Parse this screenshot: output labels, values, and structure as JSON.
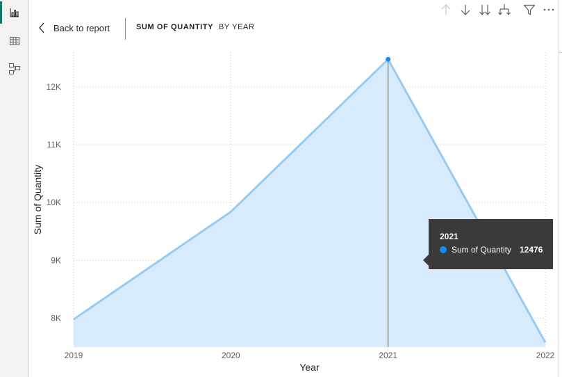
{
  "header": {
    "back_label": "Back to report",
    "breadcrumb": [
      "SUM OF QUANTITY",
      "BY YEAR"
    ]
  },
  "toolbar": {
    "icons": [
      "arrow-up-icon",
      "arrow-down-icon",
      "double-arrow-down-icon",
      "expand-hierarchy-icon",
      "filter-icon",
      "more-options-icon"
    ]
  },
  "sidebar": {
    "items": [
      "report-view-icon",
      "table-view-icon",
      "model-view-icon"
    ],
    "active_index": 0
  },
  "colors": {
    "series_line": "#95cbf5",
    "series_fill": "#d8ebfc",
    "marker": "#118dff",
    "tooltip_bg": "#3b3a39",
    "active_accent": "#117865"
  },
  "chart_data": {
    "type": "area",
    "xlabel": "Year",
    "ylabel": "Sum of Quantity",
    "x": [
      "2019",
      "2020",
      "2021",
      "2022"
    ],
    "series": [
      {
        "name": "Sum of Quantity",
        "values": [
          7980,
          9840,
          12476,
          7580
        ]
      }
    ],
    "ylim": [
      7500,
      12600
    ],
    "yticks": [
      {
        "value": 8000,
        "label": "8K"
      },
      {
        "value": 9000,
        "label": "9K"
      },
      {
        "value": 10000,
        "label": "10K"
      },
      {
        "value": 11000,
        "label": "11K"
      },
      {
        "value": 12000,
        "label": "12K"
      }
    ],
    "grid": true,
    "highlighted": {
      "x": "2021",
      "series": "Sum of Quantity",
      "value_label": "12476"
    }
  }
}
